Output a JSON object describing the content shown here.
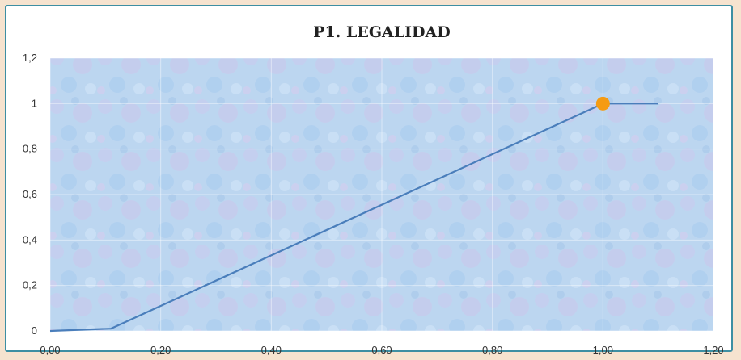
{
  "chart_data": {
    "type": "line",
    "title": "P1. LEGALIDAD",
    "xlabel": "",
    "ylabel": "",
    "xlim": [
      0,
      1.2
    ],
    "ylim": [
      0,
      1.2
    ],
    "x_ticks": [
      "0,00",
      "0,20",
      "0,40",
      "0,60",
      "0,80",
      "1,00",
      "1,20"
    ],
    "y_ticks": [
      "0",
      "0,2",
      "0,4",
      "0,6",
      "0,8",
      "1",
      "1,2"
    ],
    "grid": true,
    "series": [
      {
        "x": [
          0,
          0.11,
          1.0,
          1.1
        ],
        "y": [
          0,
          0.01,
          1.0,
          1.0
        ],
        "color": "#4a7ebb"
      }
    ],
    "highlight_point": {
      "x": 1.0,
      "y": 1.0,
      "color": "#f59b12"
    },
    "plot_background": "#bcd8f2"
  }
}
